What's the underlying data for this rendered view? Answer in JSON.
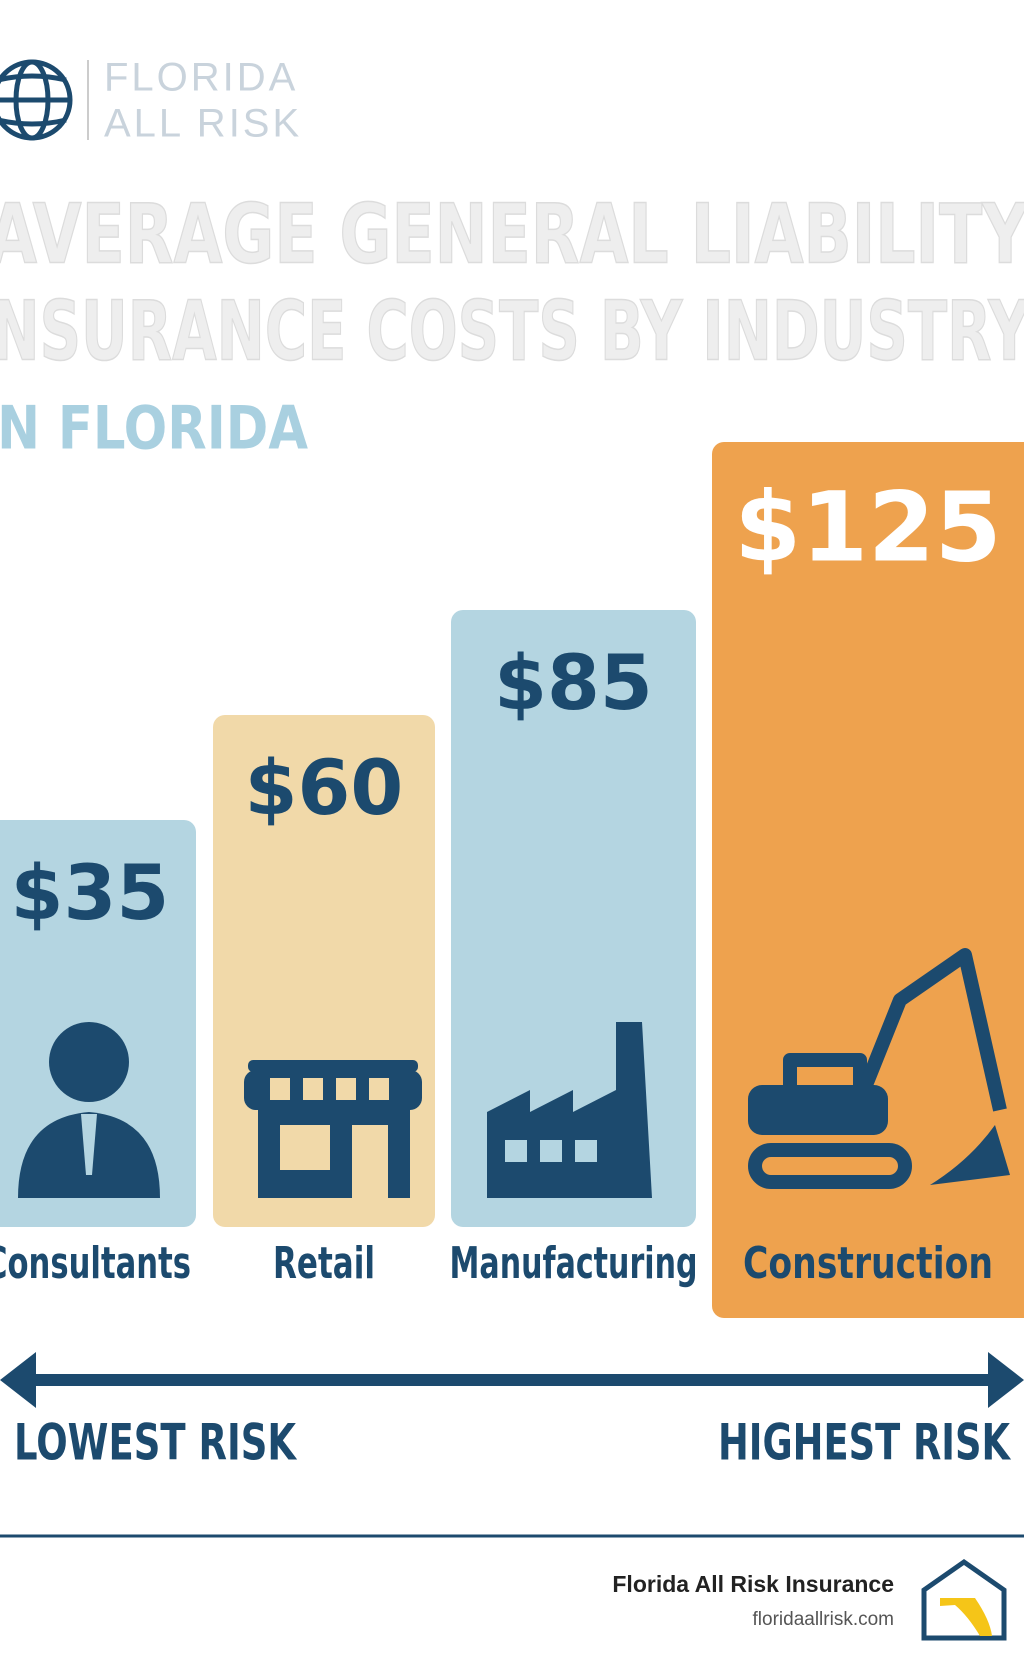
{
  "logo": {
    "line1": "FLORIDA",
    "line2": "ALL RISK"
  },
  "chart_data": {
    "type": "bar",
    "title": [
      "AVERAGE GENERAL LIABILITY",
      "INSURANCE COSTS BY INDUSTRY"
    ],
    "subtitle": "IN FLORIDA",
    "categories": [
      "Consultants",
      "Retail",
      "Manufacturing",
      "Construction"
    ],
    "values": [
      35,
      60,
      85,
      125
    ],
    "value_labels": [
      "$35",
      "$60",
      "$85",
      "$125"
    ],
    "colors": [
      "#b4d5e1",
      "#f1d9a9",
      "#b4d5e1",
      "#eea24e"
    ]
  },
  "scale": {
    "low": "LOWEST RISK",
    "high": "HIGHEST RISK"
  },
  "footer": {
    "name": "Florida All Risk Insurance",
    "url": "floridaallrisk.com"
  }
}
